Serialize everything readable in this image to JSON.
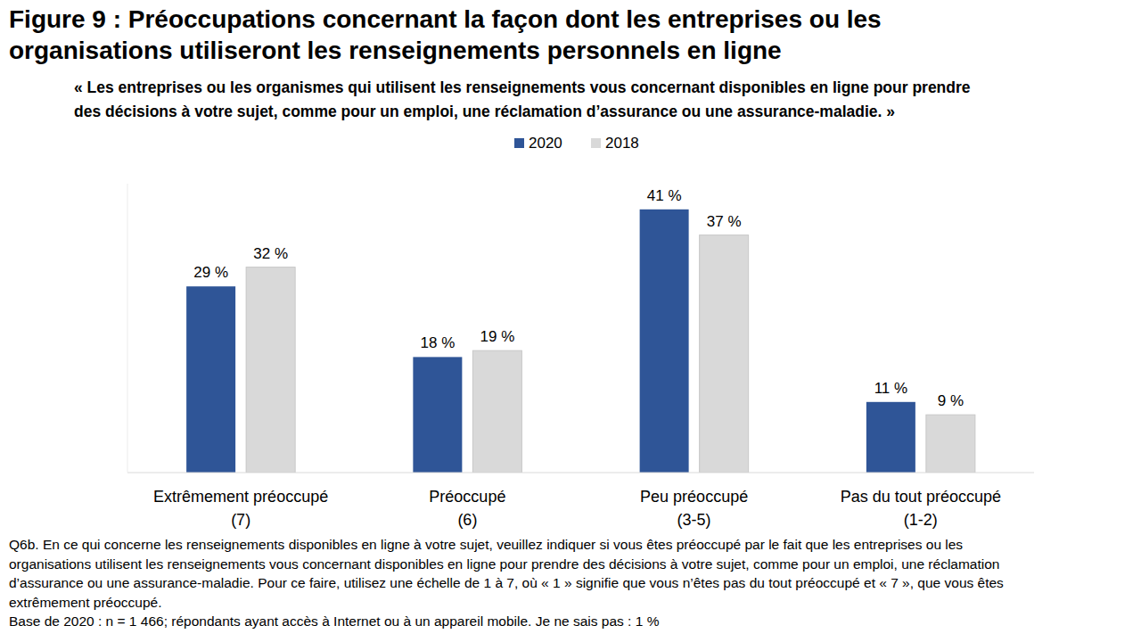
{
  "chart_data": {
    "type": "bar",
    "title": "Figure 9 : Préoccupations concernant la façon dont les entreprises ou les\norganisations utiliseront les renseignements personnels en ligne",
    "subtitle": "« Les entreprises ou les organismes qui utilisent les renseignements vous concernant disponibles en ligne pour prendre\ndes décisions à votre sujet, comme pour un emploi, une réclamation d’assurance ou une assurance-maladie. »",
    "categories": [
      "Extrêmement préoccupé\n(7)",
      "Préoccupé\n(6)",
      "Peu préoccupé\n(3-5)",
      "Pas du tout préoccupé\n(1-2)"
    ],
    "series": [
      {
        "name": "2020",
        "color": "#2f5597",
        "values": [
          29,
          18,
          41,
          11
        ],
        "value_labels": [
          "29 %",
          "18 %",
          "41 %",
          "11 %"
        ]
      },
      {
        "name": "2018",
        "color": "#d9d9d9",
        "values": [
          32,
          19,
          37,
          9
        ],
        "value_labels": [
          "32 %",
          "19 %",
          "37 %",
          "9 %"
        ]
      }
    ],
    "ylim": [
      0,
      45
    ],
    "grid": false,
    "legend": "top",
    "data_labels": true,
    "tick_labels": "x",
    "annotations": [
      "Q6b. En ce qui concerne les renseignements disponibles en ligne à votre sujet, veuillez indiquer si vous êtes préoccupé par le fait que les entreprises ou les\norganisations utilisent les renseignements vous concernant disponibles en ligne pour prendre des décisions à votre sujet, comme pour un emploi, une réclamation\nd’assurance ou une assurance-maladie. Pour ce faire, utilisez une échelle de 1 à 7, où « 1 » signifie que vous n’êtes pas du tout préoccupé et « 7 », que vous êtes\nextrêmement préoccupé.",
      "Base de 2020 : n = 1 466; répondants ayant accès à Internet ou à un appareil mobile. Je ne sais pas : 1 %"
    ]
  }
}
